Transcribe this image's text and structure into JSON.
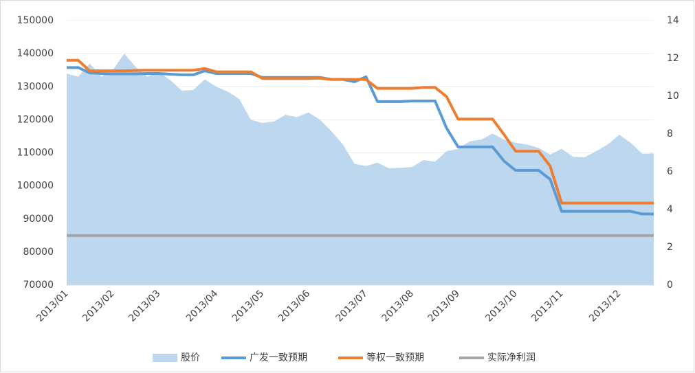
{
  "chart_data": {
    "type": "line",
    "categories": [
      "2013/01",
      null,
      null,
      null,
      "2013/02",
      null,
      null,
      null,
      "2013/03",
      null,
      null,
      null,
      null,
      "2013/04",
      null,
      null,
      null,
      "2013/05",
      null,
      null,
      null,
      "2013/06",
      null,
      null,
      null,
      null,
      "2013/07",
      null,
      null,
      null,
      "2013/08",
      null,
      null,
      null,
      "2013/09",
      null,
      null,
      null,
      null,
      "2013/10",
      null,
      null,
      null,
      "2013/11",
      null,
      null,
      null,
      null,
      "2013/12",
      null,
      null,
      null
    ],
    "series": [
      {
        "name": "股价",
        "type": "area",
        "axis": "y2",
        "color": "#bdd7ee",
        "values": [
          11.2,
          11.03,
          11.73,
          11.03,
          11.38,
          12.25,
          11.55,
          11.03,
          11.29,
          10.85,
          10.29,
          10.33,
          10.89,
          10.5,
          10.24,
          9.85,
          8.75,
          8.58,
          8.66,
          9.01,
          8.89,
          9.14,
          8.75,
          8.14,
          7.44,
          6.42,
          6.3,
          6.48,
          6.18,
          6.21,
          6.25,
          6.62,
          6.53,
          7.09,
          7.21,
          7.61,
          7.7,
          8.02,
          7.7,
          7.53,
          7.44,
          7.26,
          6.91,
          7.21,
          6.79,
          6.77,
          7.09,
          7.44,
          7.96,
          7.53,
          6.95,
          6.97
        ]
      },
      {
        "name": "广发一致预期",
        "type": "line",
        "color": "#5b9bd5",
        "values": [
          135800,
          135800,
          134200,
          134000,
          133900,
          133900,
          133900,
          134000,
          134000,
          133800,
          133600,
          133600,
          134800,
          134000,
          134000,
          134000,
          134000,
          132800,
          132800,
          132800,
          132800,
          132800,
          132800,
          132200,
          132200,
          131500,
          133000,
          125500,
          125500,
          125500,
          125700,
          125700,
          125700,
          117500,
          111800,
          111800,
          111800,
          111800,
          107500,
          104700,
          104700,
          104700,
          102000,
          92300,
          92300,
          92300,
          92300,
          92300,
          92300,
          92300,
          91500,
          91500
        ]
      },
      {
        "name": "等权一致预期",
        "type": "line",
        "color": "#ed7d31",
        "values": [
          138000,
          138000,
          134800,
          134800,
          134800,
          134800,
          134900,
          135000,
          135000,
          135000,
          135000,
          135000,
          135500,
          134500,
          134500,
          134500,
          134500,
          132500,
          132500,
          132500,
          132500,
          132500,
          132600,
          132200,
          132200,
          132200,
          132200,
          129500,
          129500,
          129500,
          129500,
          129800,
          129800,
          127000,
          120200,
          120200,
          120200,
          120200,
          115500,
          110500,
          110500,
          110500,
          106000,
          94800,
          94800,
          94800,
          94800,
          94800,
          94800,
          94800,
          94800,
          94800
        ]
      },
      {
        "name": "实际净利润",
        "type": "line",
        "color": "#a5a5a5",
        "values": [
          85000,
          85000,
          85000,
          85000,
          85000,
          85000,
          85000,
          85000,
          85000,
          85000,
          85000,
          85000,
          85000,
          85000,
          85000,
          85000,
          85000,
          85000,
          85000,
          85000,
          85000,
          85000,
          85000,
          85000,
          85000,
          85000,
          85000,
          85000,
          85000,
          85000,
          85000,
          85000,
          85000,
          85000,
          85000,
          85000,
          85000,
          85000,
          85000,
          85000,
          85000,
          85000,
          85000,
          85000,
          85000,
          85000,
          85000,
          85000,
          85000,
          85000,
          85000,
          85000
        ]
      }
    ],
    "ylim": [
      70000,
      150000
    ],
    "yticks": [
      70000,
      80000,
      90000,
      100000,
      110000,
      120000,
      130000,
      140000,
      150000
    ],
    "y2lim": [
      0,
      14
    ],
    "y2ticks": [
      0,
      2,
      4,
      6,
      8,
      10,
      12,
      14
    ],
    "grid": true,
    "legend": "bottom"
  }
}
